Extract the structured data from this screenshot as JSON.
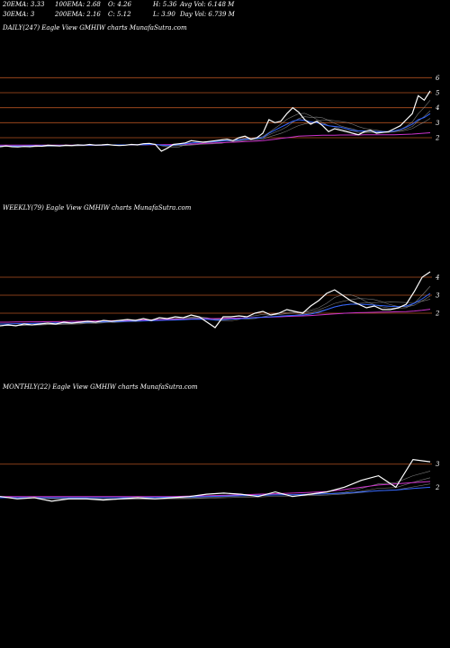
{
  "stats": {
    "ema20": "20EMA: 3.33",
    "ema100": "100EMA: 2.68",
    "open": "O: 4.26",
    "high": "H: 5.36",
    "avg_vol": "Avg Vol: 6.148  M",
    "ema30": "30EMA: 3",
    "ema200": "200EMA: 2.16",
    "close": "C: 5.12",
    "low": "L: 3.90",
    "day_vol": "Day Vol: 6.739 M"
  },
  "panels": [
    {
      "title": "DAILY(247) Eagle   View  GMHIW charts MunafaSutra.com",
      "ticks": [
        "6",
        "5",
        "4",
        "3",
        "2"
      ]
    },
    {
      "title": "WEEKLY(79) Eagle   View  GMHIW charts MunafaSutra.com",
      "ticks": [
        "4",
        "3",
        "2"
      ]
    },
    {
      "title": "MONTHLY(22) Eagle   View  GMHIW charts MunafaSutra.com",
      "ticks": [
        "3",
        "2"
      ]
    }
  ],
  "colors": {
    "background": "#000000",
    "price": "#ffffff",
    "ema_fast": "#3366ff",
    "ema_slow": "#cc33cc",
    "levels": "#b05020",
    "grey": "#999999"
  },
  "chart_data": [
    {
      "type": "line",
      "ylim": [
        0.5,
        6.5
      ],
      "levels": [
        6,
        5,
        4,
        3,
        2
      ],
      "series": [
        {
          "values": [
            1.4,
            1.45,
            1.4,
            1.38,
            1.42,
            1.4,
            1.45,
            1.43,
            1.5,
            1.48,
            1.45,
            1.5,
            1.48,
            1.52,
            1.5,
            1.55,
            1.5,
            1.52,
            1.55,
            1.5,
            1.48,
            1.5,
            1.55,
            1.52,
            1.6,
            1.62,
            1.55,
            1.1,
            1.3,
            1.55,
            1.6,
            1.65,
            1.8,
            1.75,
            1.7,
            1.75,
            1.8,
            1.85,
            1.9,
            1.8,
            2.0,
            2.1,
            1.9,
            2.0,
            2.3,
            3.2,
            3.0,
            3.1,
            3.6,
            4.0,
            3.7,
            3.2,
            2.9,
            3.1,
            2.8,
            2.4,
            2.6,
            2.5,
            2.4,
            2.3,
            2.2,
            2.4,
            2.5,
            2.3,
            2.35,
            2.4,
            2.6,
            2.8,
            3.2,
            3.6,
            4.8,
            4.5,
            5.12
          ]
        },
        {
          "values": [
            1.45,
            1.45,
            1.45,
            1.45,
            1.45,
            1.46,
            1.46,
            1.47,
            1.47,
            1.48,
            1.48,
            1.49,
            1.49,
            1.5,
            1.5,
            1.5,
            1.51,
            1.51,
            1.52,
            1.52,
            1.52,
            1.52,
            1.53,
            1.53,
            1.54,
            1.55,
            1.55,
            1.5,
            1.48,
            1.5,
            1.55,
            1.6,
            1.65,
            1.68,
            1.7,
            1.72,
            1.75,
            1.77,
            1.8,
            1.82,
            1.85,
            1.9,
            1.92,
            1.95,
            2.0,
            2.3,
            2.5,
            2.7,
            2.9,
            3.1,
            3.2,
            3.15,
            3.05,
            3.0,
            2.9,
            2.8,
            2.75,
            2.7,
            2.6,
            2.5,
            2.45,
            2.45,
            2.45,
            2.4,
            2.4,
            2.4,
            2.45,
            2.55,
            2.7,
            2.9,
            3.2,
            3.35,
            3.6
          ]
        },
        {
          "values": [
            1.5,
            1.5,
            1.5,
            1.5,
            1.5,
            1.5,
            1.5,
            1.5,
            1.5,
            1.5,
            1.5,
            1.5,
            1.51,
            1.51,
            1.51,
            1.51,
            1.51,
            1.51,
            1.52,
            1.52,
            1.52,
            1.52,
            1.52,
            1.53,
            1.53,
            1.53,
            1.54,
            1.54,
            1.54,
            1.55,
            1.56,
            1.57,
            1.58,
            1.6,
            1.62,
            1.63,
            1.65,
            1.67,
            1.69,
            1.7,
            1.72,
            1.74,
            1.76,
            1.78,
            1.8,
            1.85,
            1.9,
            1.95,
            2.0,
            2.05,
            2.1,
            2.12,
            2.14,
            2.15,
            2.16,
            2.17,
            2.17,
            2.18,
            2.18,
            2.18,
            2.18,
            2.19,
            2.19,
            2.19,
            2.19,
            2.2,
            2.2,
            2.21,
            2.22,
            2.24,
            2.27,
            2.3,
            2.33
          ]
        }
      ]
    },
    {
      "type": "line",
      "ylim": [
        0.5,
        5.0
      ],
      "levels": [
        4,
        3,
        2
      ],
      "series": [
        {
          "values": [
            1.3,
            1.35,
            1.3,
            1.4,
            1.35,
            1.4,
            1.45,
            1.4,
            1.5,
            1.45,
            1.5,
            1.55,
            1.5,
            1.6,
            1.55,
            1.6,
            1.65,
            1.6,
            1.7,
            1.6,
            1.75,
            1.7,
            1.8,
            1.75,
            1.9,
            1.8,
            1.5,
            1.2,
            1.8,
            1.8,
            1.85,
            1.8,
            2.0,
            2.1,
            1.9,
            2.0,
            2.2,
            2.1,
            2.0,
            2.4,
            2.7,
            3.1,
            3.3,
            3.0,
            2.7,
            2.5,
            2.3,
            2.4,
            2.2,
            2.2,
            2.3,
            2.5,
            3.2,
            4.0,
            4.3
          ]
        },
        {
          "values": [
            1.4,
            1.4,
            1.42,
            1.42,
            1.43,
            1.44,
            1.45,
            1.46,
            1.47,
            1.48,
            1.49,
            1.5,
            1.51,
            1.52,
            1.53,
            1.54,
            1.55,
            1.56,
            1.57,
            1.58,
            1.6,
            1.61,
            1.62,
            1.64,
            1.66,
            1.67,
            1.66,
            1.62,
            1.64,
            1.67,
            1.69,
            1.72,
            1.75,
            1.78,
            1.8,
            1.83,
            1.86,
            1.88,
            1.9,
            1.95,
            2.05,
            2.2,
            2.35,
            2.45,
            2.5,
            2.5,
            2.48,
            2.45,
            2.42,
            2.38,
            2.36,
            2.4,
            2.55,
            2.8,
            3.1
          ]
        },
        {
          "values": [
            1.5,
            1.5,
            1.51,
            1.51,
            1.52,
            1.52,
            1.53,
            1.53,
            1.54,
            1.55,
            1.55,
            1.56,
            1.57,
            1.58,
            1.58,
            1.59,
            1.6,
            1.61,
            1.62,
            1.63,
            1.64,
            1.65,
            1.66,
            1.67,
            1.68,
            1.69,
            1.7,
            1.7,
            1.71,
            1.72,
            1.73,
            1.74,
            1.76,
            1.77,
            1.79,
            1.8,
            1.82,
            1.84,
            1.85,
            1.87,
            1.9,
            1.93,
            1.96,
            1.99,
            2.01,
            2.03,
            2.04,
            2.05,
            2.06,
            2.07,
            2.08,
            2.09,
            2.12,
            2.16,
            2.22
          ]
        }
      ]
    },
    {
      "type": "line",
      "ylim": [
        0.5,
        4.0
      ],
      "levels": [
        3
      ],
      "series": [
        {
          "values": [
            1.6,
            1.5,
            1.55,
            1.4,
            1.5,
            1.5,
            1.45,
            1.5,
            1.55,
            1.5,
            1.55,
            1.6,
            1.7,
            1.75,
            1.7,
            1.6,
            1.8,
            1.6,
            1.7,
            1.8,
            2.0,
            2.3,
            2.5,
            2.0,
            3.2,
            3.1
          ]
        },
        {
          "values": [
            1.55,
            1.55,
            1.55,
            1.55,
            1.55,
            1.55,
            1.55,
            1.55,
            1.55,
            1.56,
            1.57,
            1.58,
            1.6,
            1.62,
            1.64,
            1.65,
            1.67,
            1.68,
            1.7,
            1.72,
            1.75,
            1.8,
            1.85,
            1.88,
            1.95,
            2.0
          ]
        },
        {
          "values": [
            1.6,
            1.6,
            1.6,
            1.6,
            1.6,
            1.6,
            1.6,
            1.6,
            1.6,
            1.6,
            1.6,
            1.62,
            1.63,
            1.65,
            1.67,
            1.7,
            1.72,
            1.75,
            1.78,
            1.82,
            1.9,
            2.0,
            2.1,
            2.15,
            2.2,
            2.25
          ]
        }
      ]
    }
  ]
}
